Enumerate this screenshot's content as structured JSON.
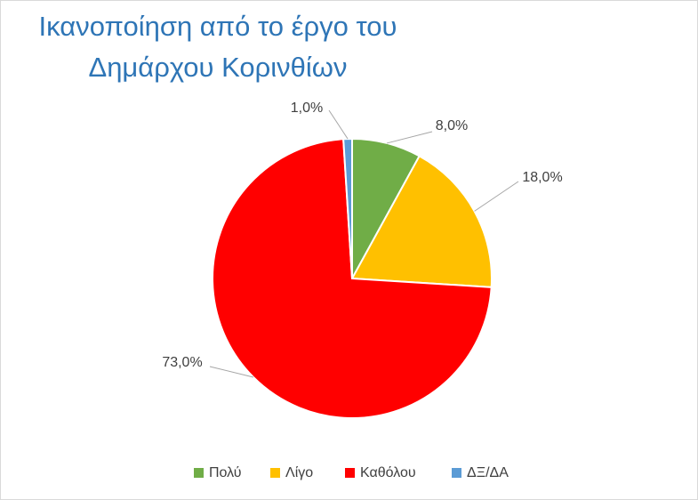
{
  "chart_data": {
    "type": "pie",
    "title": [
      "Ικανοποίηση από το έργο του",
      "Δημάρχου Κορινθίων"
    ],
    "categories": [
      "Πολύ",
      "Λίγο",
      "Καθόλου",
      "ΔΞ/ΔΑ"
    ],
    "values": [
      8,
      18,
      73,
      1
    ],
    "value_labels": [
      "8,0%",
      "18,0%",
      "73,0%",
      "1,0%"
    ],
    "colors": [
      "#70ad47",
      "#ffc000",
      "#ff0000",
      "#5b9bd5"
    ],
    "legend": "bottom"
  }
}
